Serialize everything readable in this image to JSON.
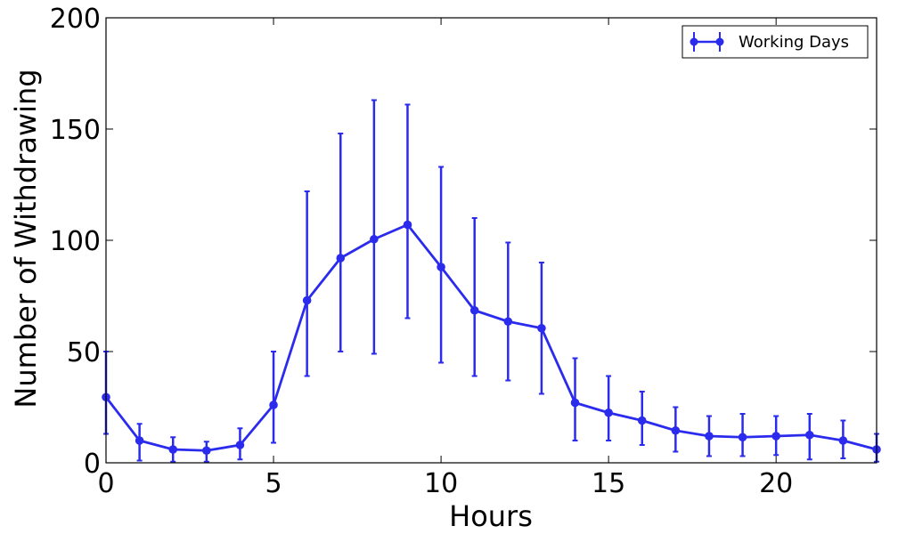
{
  "chart_data": {
    "type": "line",
    "title": "",
    "xlabel": "Hours",
    "ylabel": "Number of Withdrawing",
    "xlim": [
      0,
      23
    ],
    "ylim": [
      0,
      200
    ],
    "xticks": [
      0,
      5,
      10,
      15,
      20
    ],
    "yticks": [
      0,
      50,
      100,
      150,
      200
    ],
    "grid": false,
    "legend_position": "top-right",
    "color": "#2b2bed",
    "series": [
      {
        "name": "Working Days",
        "x": [
          0,
          1,
          2,
          3,
          4,
          5,
          6,
          7,
          8,
          9,
          10,
          11,
          12,
          13,
          14,
          15,
          16,
          17,
          18,
          19,
          20,
          21,
          22,
          23
        ],
        "y": [
          29.5,
          10,
          6,
          5.5,
          8,
          26,
          73,
          92,
          100.5,
          107,
          88,
          68.5,
          63.5,
          60.5,
          27,
          22.5,
          19,
          14.5,
          12,
          11.5,
          12,
          12.5,
          10,
          6
        ],
        "err_low": [
          13,
          1,
          0.5,
          0.5,
          1.5,
          9,
          39,
          50,
          49,
          65,
          45,
          39,
          37,
          31,
          10,
          10,
          8,
          5,
          3,
          3,
          3.5,
          1.5,
          2,
          0.5
        ],
        "err_high": [
          50,
          17.5,
          11.5,
          9.5,
          15.5,
          50,
          122,
          148,
          163,
          161,
          133,
          110,
          99,
          90,
          47,
          39,
          32,
          25,
          21,
          22,
          21,
          22,
          19,
          13
        ]
      }
    ]
  }
}
